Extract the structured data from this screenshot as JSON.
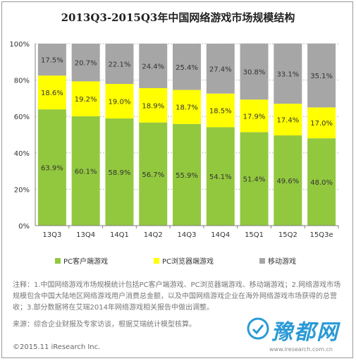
{
  "title": "2013Q3-2015Q3年中国网络游戏市场规模结构",
  "chart_data": {
    "type": "bar",
    "stacked": true,
    "categories": [
      "13Q3",
      "13Q4",
      "14Q1",
      "14Q2",
      "14Q3",
      "14Q4",
      "15Q1",
      "15Q2",
      "15Q3e"
    ],
    "series": [
      {
        "name": "PC客户端游戏",
        "color": "#92c83e",
        "values": [
          63.9,
          60.1,
          58.9,
          56.7,
          55.9,
          54.1,
          51.4,
          49.6,
          48.0
        ]
      },
      {
        "name": "PC浏览器端游戏",
        "color": "#ffff00",
        "values": [
          18.6,
          19.2,
          19.0,
          18.9,
          18.7,
          18.5,
          17.9,
          17.4,
          17.0
        ]
      },
      {
        "name": "移动游戏",
        "color": "#a6a6a6",
        "values": [
          17.5,
          20.7,
          22.1,
          24.4,
          25.4,
          27.4,
          30.8,
          33.1,
          35.1
        ]
      }
    ],
    "ylim": [
      0,
      100
    ],
    "yticks": [
      "0%",
      "20%",
      "40%",
      "60%",
      "80%",
      "100%"
    ],
    "grid": true,
    "legend": "bottom",
    "value_suffix": "%"
  },
  "notes": "注释：1.中国网络游戏市场规模统计包括PC客户端游戏、PC浏览器端游戏、移动端游戏；2.网络游戏市场规模包含中国大陆地区网络游戏用户消费总金额，以及中国网络游戏企业在海外网络游戏市场获得的总营收；3.部分数据将在艾瑞2014年网络游戏相关报告中做出调整。",
  "source": "来源：综合企业财报及专家访谈，根据艾瑞统计模型核算。",
  "copyright": "©2015.11 iResearch Inc.",
  "website": "www.iresearch.com.cn",
  "watermark": "豫都网"
}
